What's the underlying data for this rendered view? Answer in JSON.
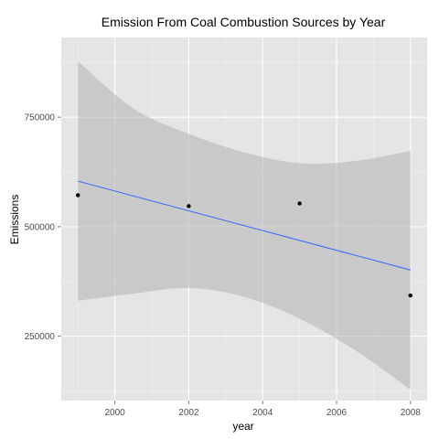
{
  "chart_data": {
    "type": "scatter",
    "title": "Emission From Coal Combustion Sources by Year",
    "xlabel": "year",
    "ylabel": "Emissions",
    "xlim": [
      1998.55,
      2008.45
    ],
    "ylim": [
      103000,
      932000
    ],
    "x_ticks": [
      2000,
      2002,
      2004,
      2006,
      2008
    ],
    "y_ticks": [
      250000,
      500000,
      750000
    ],
    "x_tick_labels": [
      "2000",
      "2002",
      "2004",
      "2006",
      "2008"
    ],
    "y_tick_labels": [
      "250000",
      "500000",
      "750000"
    ],
    "grid": true,
    "legend": "none",
    "points": [
      {
        "x": 1999,
        "y": 572000
      },
      {
        "x": 2002,
        "y": 547000
      },
      {
        "x": 2005,
        "y": 553000
      },
      {
        "x": 2008,
        "y": 343000
      }
    ],
    "trend_line": {
      "method": "linear",
      "x": [
        1999,
        2008
      ],
      "y": [
        604000,
        401000
      ]
    },
    "confidence_band": {
      "x": [
        1999,
        2000.5,
        2002,
        2003.5,
        2005,
        2006.5,
        2008
      ],
      "upper": [
        878000,
        770000,
        712000,
        670000,
        645000,
        650000,
        673000
      ],
      "lower": [
        331000,
        347000,
        360000,
        340000,
        290000,
        218000,
        128000
      ]
    },
    "colors": {
      "panel": "#e5e5e5",
      "grid_major": "#ffffff",
      "grid_minor": "#f2f2f2",
      "band": "#b3b3b3",
      "line": "#3366ff",
      "point": "#000000"
    }
  }
}
